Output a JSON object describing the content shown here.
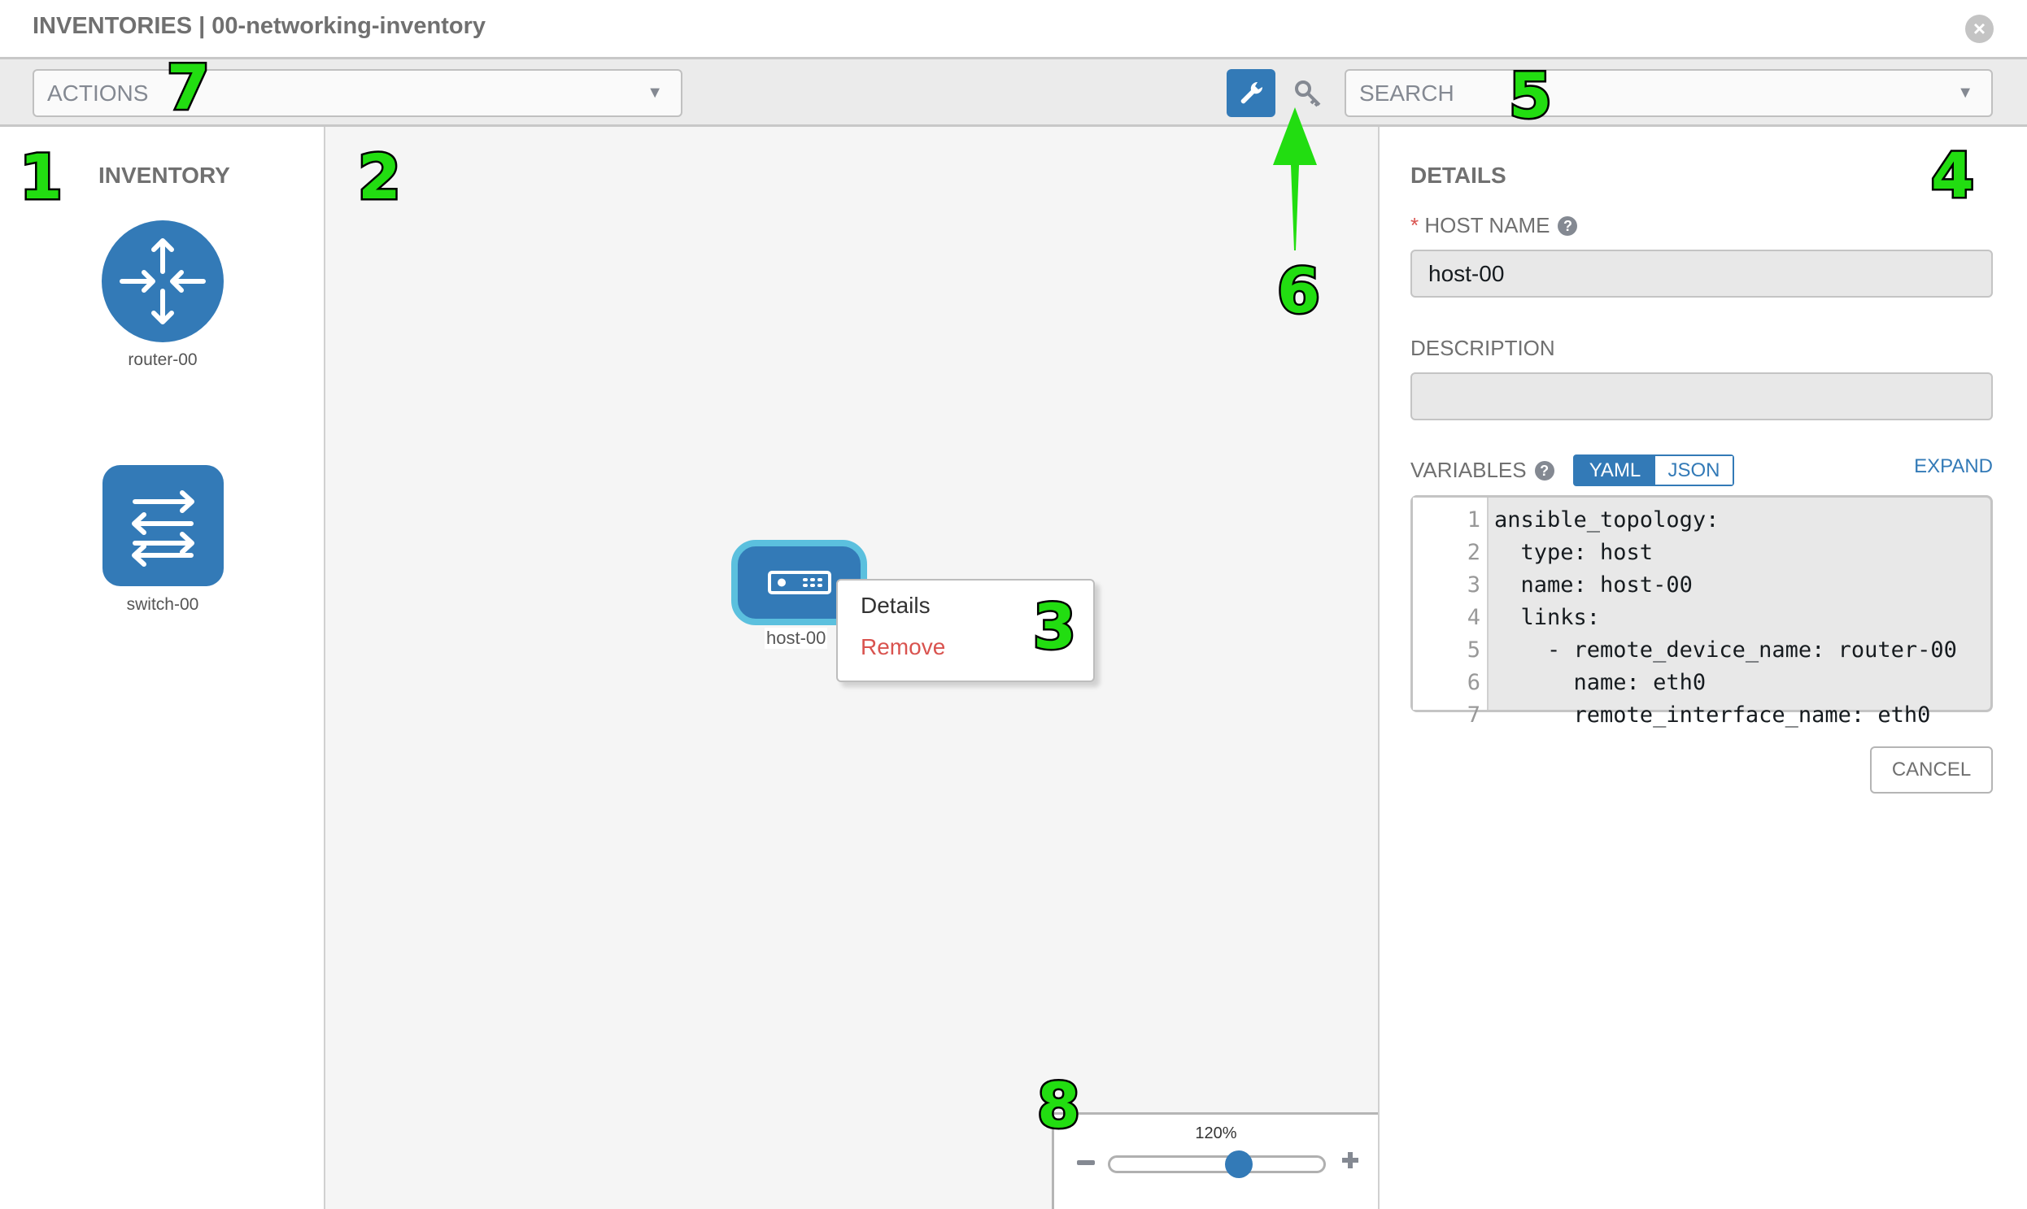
{
  "header": {
    "title": "INVENTORIES | 00-networking-inventory",
    "close_icon": "close-circle-icon"
  },
  "toolbar": {
    "actions_placeholder": "ACTIONS",
    "search_placeholder": "SEARCH",
    "tools": [
      {
        "icon": "wrench-icon",
        "active": true
      },
      {
        "icon": "key-icon",
        "active": false
      }
    ]
  },
  "inventory": {
    "title": "INVENTORY",
    "items": [
      {
        "label": "router-00",
        "icon": "router-icon"
      },
      {
        "label": "switch-00",
        "icon": "switch-icon"
      }
    ]
  },
  "canvas": {
    "node": {
      "label": "host-00",
      "icon": "host-icon"
    },
    "context_menu": {
      "details": "Details",
      "remove": "Remove"
    },
    "zoom": {
      "label": "120%",
      "value_percent": 120,
      "slider_fraction": 0.6
    }
  },
  "details": {
    "title": "DETAILS",
    "required_mark": "*",
    "host_name_label": "HOST NAME",
    "host_name_value": "host-00",
    "description_label": "DESCRIPTION",
    "description_value": "",
    "variables_label": "VARIABLES",
    "format_yaml": "YAML",
    "format_json": "JSON",
    "selected_format": "YAML",
    "expand": "EXPAND",
    "code_lines": [
      {
        "n": "1",
        "text": "ansible_topology:"
      },
      {
        "n": "2",
        "text": "  type: host"
      },
      {
        "n": "3",
        "text": "  name: host-00"
      },
      {
        "n": "4",
        "text": "  links:"
      },
      {
        "n": "5",
        "text": "    - remote_device_name: router-00"
      },
      {
        "n": "6",
        "text": "      name: eth0"
      },
      {
        "n": "7",
        "text": "      remote_interface_name: eth0"
      }
    ],
    "cancel": "CANCEL"
  },
  "annotations": [
    "1",
    "2",
    "3",
    "4",
    "5",
    "6",
    "7",
    "8"
  ],
  "colors": {
    "primary": "#337ab7",
    "node_border": "#5bc0de",
    "danger": "#d9534f",
    "annotation": "#22dd11"
  }
}
